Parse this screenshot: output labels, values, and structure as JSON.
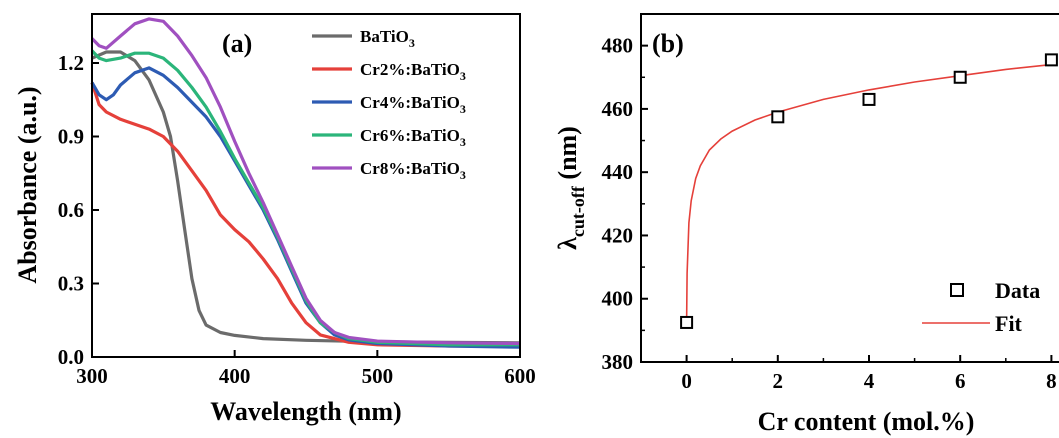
{
  "chart_data": [
    {
      "type": "line",
      "panel_label": "(a)",
      "xlabel": "Wavelength (nm)",
      "ylabel": "Absorbance (a.u.)",
      "xlim": [
        300,
        600
      ],
      "ylim": [
        0,
        1.4
      ],
      "xticks": [
        300,
        400,
        500,
        600
      ],
      "yticks": [
        0.0,
        0.3,
        0.6,
        0.9,
        1.2
      ],
      "xtick_labels": [
        "300",
        "400",
        "500",
        "600"
      ],
      "ytick_labels": [
        "0.0",
        "0.3",
        "0.6",
        "0.9",
        "1.2"
      ],
      "legend_position": "top-right",
      "series": [
        {
          "name": "BaTiO3",
          "legend_main": "BaTiO",
          "legend_sub": "3",
          "color": "#6b6b6b",
          "points": [
            [
              300,
              1.22
            ],
            [
              310,
              1.245
            ],
            [
              320,
              1.245
            ],
            [
              330,
              1.21
            ],
            [
              340,
              1.13
            ],
            [
              350,
              1.0
            ],
            [
              355,
              0.9
            ],
            [
              360,
              0.72
            ],
            [
              365,
              0.52
            ],
            [
              370,
              0.32
            ],
            [
              375,
              0.19
            ],
            [
              380,
              0.13
            ],
            [
              390,
              0.1
            ],
            [
              400,
              0.088
            ],
            [
              420,
              0.075
            ],
            [
              450,
              0.068
            ],
            [
              500,
              0.062
            ],
            [
              550,
              0.06
            ],
            [
              600,
              0.058
            ]
          ]
        },
        {
          "name": "Cr2%:BaTiO3",
          "legend_main": "Cr2%:BaTiO",
          "legend_sub": "3",
          "color": "#e5403a",
          "points": [
            [
              300,
              1.12
            ],
            [
              305,
              1.03
            ],
            [
              310,
              1.0
            ],
            [
              320,
              0.97
            ],
            [
              330,
              0.95
            ],
            [
              340,
              0.93
            ],
            [
              350,
              0.9
            ],
            [
              360,
              0.84
            ],
            [
              370,
              0.76
            ],
            [
              380,
              0.68
            ],
            [
              390,
              0.58
            ],
            [
              400,
              0.52
            ],
            [
              410,
              0.47
            ],
            [
              420,
              0.4
            ],
            [
              430,
              0.32
            ],
            [
              440,
              0.22
            ],
            [
              450,
              0.14
            ],
            [
              460,
              0.09
            ],
            [
              480,
              0.06
            ],
            [
              500,
              0.05
            ],
            [
              550,
              0.045
            ],
            [
              600,
              0.045
            ]
          ]
        },
        {
          "name": "Cr4%:BaTiO3",
          "legend_main": "Cr4%:BaTiO",
          "legend_sub": "3",
          "color": "#2d5bb3",
          "points": [
            [
              300,
              1.12
            ],
            [
              305,
              1.07
            ],
            [
              310,
              1.05
            ],
            [
              315,
              1.07
            ],
            [
              320,
              1.11
            ],
            [
              330,
              1.16
            ],
            [
              340,
              1.18
            ],
            [
              350,
              1.15
            ],
            [
              360,
              1.1
            ],
            [
              370,
              1.04
            ],
            [
              380,
              0.98
            ],
            [
              390,
              0.9
            ],
            [
              400,
              0.8
            ],
            [
              410,
              0.7
            ],
            [
              420,
              0.6
            ],
            [
              430,
              0.48
            ],
            [
              440,
              0.35
            ],
            [
              450,
              0.22
            ],
            [
              460,
              0.14
            ],
            [
              470,
              0.09
            ],
            [
              480,
              0.07
            ],
            [
              500,
              0.055
            ],
            [
              550,
              0.045
            ],
            [
              600,
              0.04
            ]
          ]
        },
        {
          "name": "Cr6%:BaTiO3",
          "legend_main": "Cr6%:BaTiO",
          "legend_sub": "3",
          "color": "#2bb57a",
          "points": [
            [
              300,
              1.25
            ],
            [
              305,
              1.22
            ],
            [
              310,
              1.21
            ],
            [
              320,
              1.22
            ],
            [
              330,
              1.24
            ],
            [
              340,
              1.24
            ],
            [
              350,
              1.22
            ],
            [
              360,
              1.17
            ],
            [
              370,
              1.1
            ],
            [
              380,
              1.02
            ],
            [
              390,
              0.92
            ],
            [
              400,
              0.81
            ],
            [
              410,
              0.71
            ],
            [
              420,
              0.61
            ],
            [
              430,
              0.49
            ],
            [
              440,
              0.36
            ],
            [
              450,
              0.23
            ],
            [
              460,
              0.14
            ],
            [
              470,
              0.1
            ],
            [
              480,
              0.075
            ],
            [
              500,
              0.06
            ],
            [
              550,
              0.05
            ],
            [
              600,
              0.05
            ]
          ]
        },
        {
          "name": "Cr8%:BaTiO3",
          "legend_main": "Cr8%:BaTiO",
          "legend_sub": "3",
          "color": "#a050c0",
          "points": [
            [
              300,
              1.3
            ],
            [
              305,
              1.27
            ],
            [
              310,
              1.26
            ],
            [
              320,
              1.31
            ],
            [
              330,
              1.36
            ],
            [
              340,
              1.38
            ],
            [
              350,
              1.37
            ],
            [
              360,
              1.31
            ],
            [
              370,
              1.23
            ],
            [
              380,
              1.14
            ],
            [
              390,
              1.02
            ],
            [
              400,
              0.88
            ],
            [
              410,
              0.75
            ],
            [
              420,
              0.63
            ],
            [
              430,
              0.5
            ],
            [
              440,
              0.37
            ],
            [
              450,
              0.24
            ],
            [
              460,
              0.15
            ],
            [
              470,
              0.1
            ],
            [
              480,
              0.08
            ],
            [
              500,
              0.065
            ],
            [
              550,
              0.058
            ],
            [
              600,
              0.055
            ]
          ]
        }
      ]
    },
    {
      "type": "scatter",
      "panel_label": "(b)",
      "xlabel": "Cr content (mol.%)",
      "ylabel_main": "λ",
      "ylabel_sub": "cut-off",
      "ylabel_unit": " (nm)",
      "xlim": [
        -1,
        9
      ],
      "ylim": [
        380,
        490
      ],
      "xticks": [
        0,
        2,
        4,
        6,
        8
      ],
      "yticks": [
        380,
        400,
        420,
        440,
        460,
        480
      ],
      "xtick_labels": [
        "0",
        "2",
        "4",
        "6",
        "8"
      ],
      "ytick_labels": [
        "380",
        "400",
        "420",
        "440",
        "460",
        "480"
      ],
      "legend_position": "bottom-right",
      "series": [
        {
          "name": "Data",
          "marker": "open-square",
          "color": "#000000",
          "x": [
            0,
            2,
            4,
            6,
            8
          ],
          "y": [
            392.5,
            457.5,
            463,
            470,
            475.5
          ]
        },
        {
          "name": "Fit",
          "line": "solid",
          "color": "#e5403a",
          "x": [
            0,
            0.01,
            0.05,
            0.1,
            0.2,
            0.3,
            0.5,
            0.75,
            1,
            1.5,
            2,
            3,
            4,
            5,
            6,
            7,
            8
          ],
          "y": [
            392.5,
            408,
            424,
            431,
            438,
            442,
            447,
            450.5,
            453,
            456.5,
            459,
            463,
            466,
            468.5,
            470.5,
            472.5,
            474
          ]
        }
      ]
    }
  ]
}
